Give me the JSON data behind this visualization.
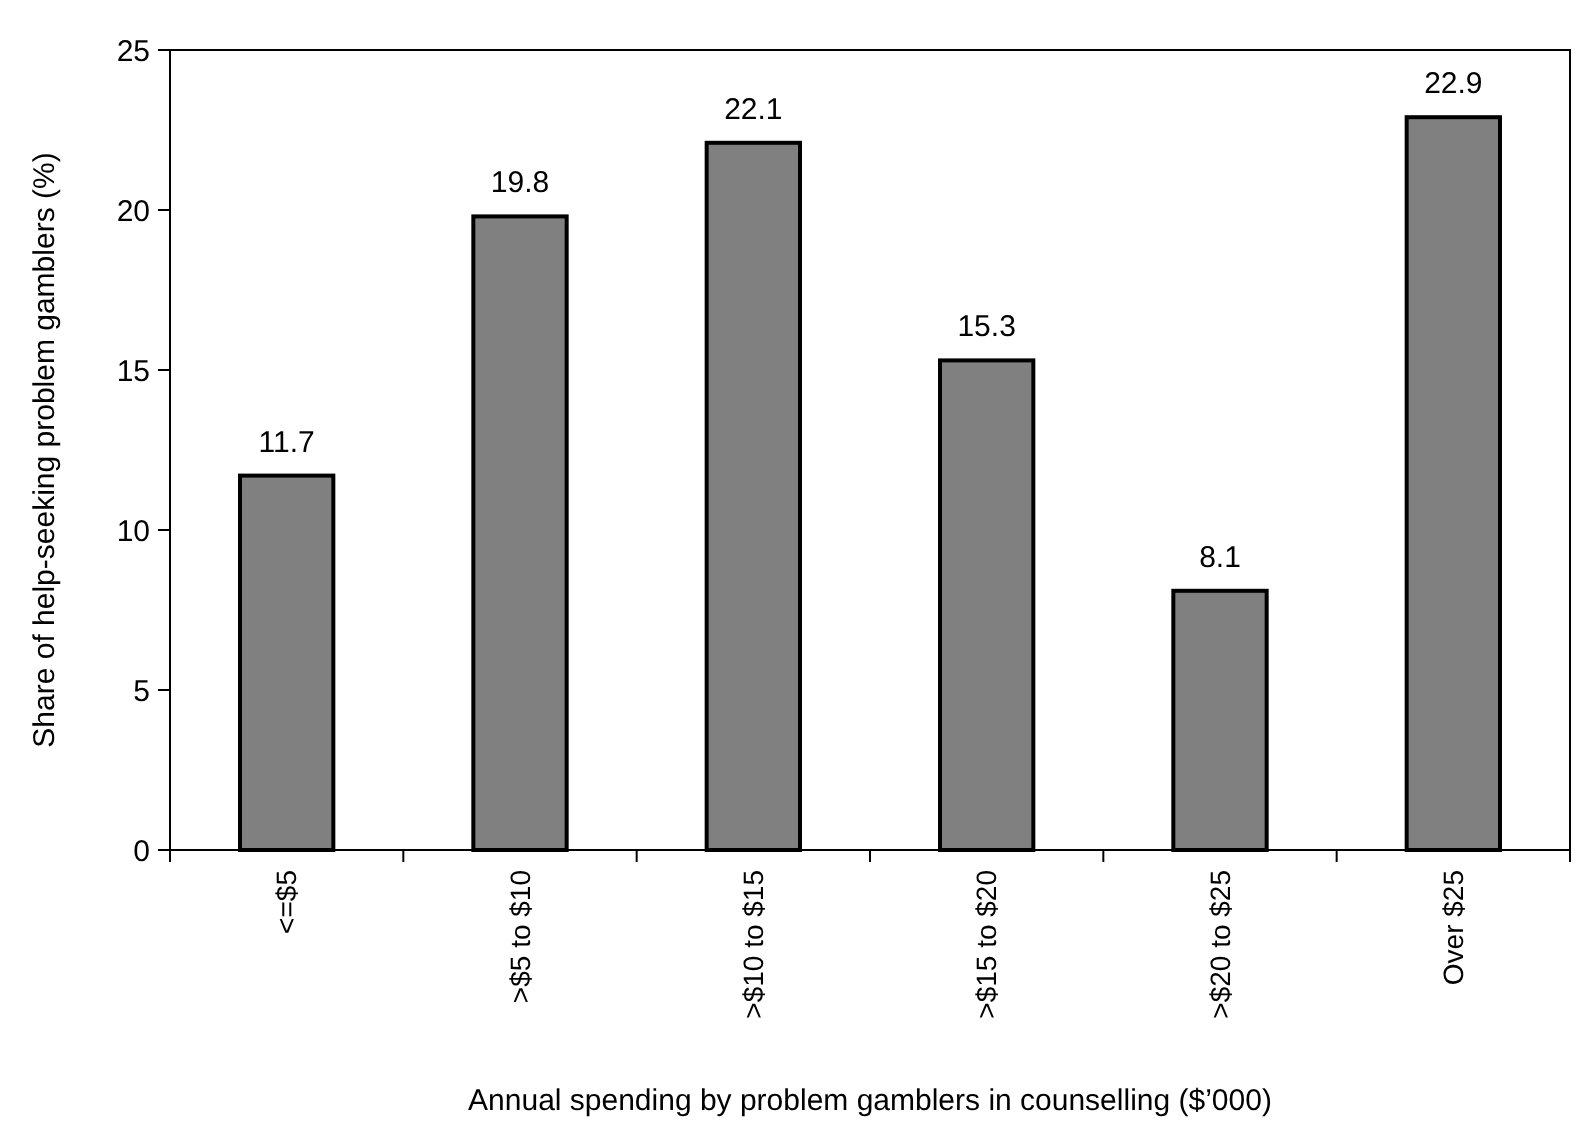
{
  "chart_data": {
    "type": "bar",
    "xlabel": "Annual spending by problem gamblers in counselling  ($’000)",
    "ylabel": "Share of help-seeking problem gamblers (%)",
    "categories": [
      "<=$5",
      ">$5 to $10",
      ">$10 to $15",
      ">$15 to $20",
      ">$20 to $25",
      "Over $25"
    ],
    "values": [
      11.7,
      19.8,
      22.1,
      15.3,
      8.1,
      22.9
    ],
    "color": "#808080",
    "ylim": [
      0,
      25
    ],
    "yticks": [
      0,
      5,
      10,
      15,
      20,
      25
    ],
    "grid": false,
    "data_labels": true
  }
}
